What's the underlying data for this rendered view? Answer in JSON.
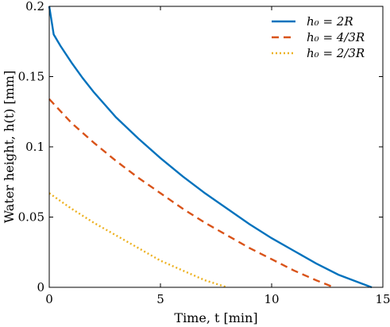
{
  "chart_data": {
    "type": "line",
    "title": "",
    "xlabel": "Time, t [min]",
    "ylabel": "Water height, h(t) [mm]",
    "xlim": [
      0,
      15
    ],
    "ylim": [
      0,
      0.2
    ],
    "xticks": [
      "0",
      "5",
      "10",
      "15"
    ],
    "yticks": [
      "0",
      "0.05",
      "0.1",
      "0.15",
      "0.2"
    ],
    "grid": false,
    "legend_position": "top-right",
    "series": [
      {
        "name": "h₀ = 2R",
        "color": "#0072BD",
        "style": "solid",
        "x": [
          0,
          0.1,
          0.2,
          0.5,
          1,
          1.5,
          2,
          3,
          4,
          5,
          6,
          7,
          8,
          9,
          10,
          11,
          12,
          13,
          14,
          14.5
        ],
        "y": [
          0.2,
          0.19,
          0.18,
          0.172,
          0.16,
          0.149,
          0.139,
          0.121,
          0.106,
          0.092,
          0.079,
          0.067,
          0.056,
          0.045,
          0.035,
          0.026,
          0.017,
          0.009,
          0.003,
          0
        ]
      },
      {
        "name": "h₀ = 4/3R",
        "color": "#D95319",
        "style": "dashed",
        "x": [
          0,
          1,
          2,
          3,
          4,
          5,
          6,
          7,
          8,
          9,
          10,
          11,
          12,
          12.8
        ],
        "y": [
          0.134,
          0.117,
          0.103,
          0.09,
          0.078,
          0.067,
          0.056,
          0.046,
          0.037,
          0.028,
          0.02,
          0.012,
          0.005,
          0
        ]
      },
      {
        "name": "h₀ = 2/3R",
        "color": "#EDB120",
        "style": "dotted",
        "x": [
          0,
          1,
          2,
          3,
          4,
          5,
          6,
          7,
          8
        ],
        "y": [
          0.067,
          0.056,
          0.046,
          0.037,
          0.028,
          0.019,
          0.012,
          0.005,
          0
        ]
      }
    ]
  }
}
